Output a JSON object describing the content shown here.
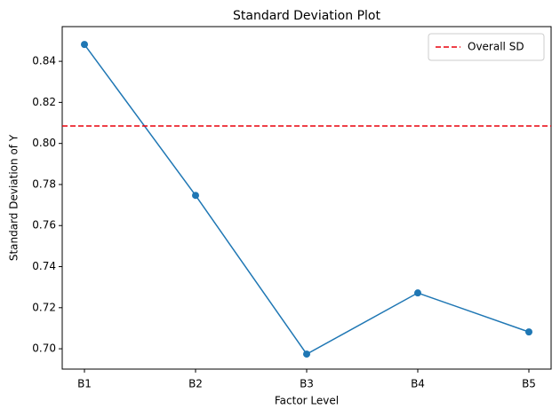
{
  "chart_data": {
    "type": "line",
    "title": "Standard Deviation Plot",
    "xlabel": "Factor Level",
    "ylabel": "Standard Deviation of Y",
    "categories": [
      "B1",
      "B2",
      "B3",
      "B4",
      "B5"
    ],
    "series": [
      {
        "color": "#1f77b4",
        "values": [
          0.8482,
          0.7747,
          0.6974,
          0.7272,
          0.7082
        ]
      }
    ],
    "reference_lines": [
      {
        "name": "Overall SD",
        "value": 0.8085,
        "color": "#e8000b",
        "style": "dashed"
      }
    ],
    "ylim": [
      0.6901,
      0.8569
    ],
    "yticks": [
      {
        "value": 0.7,
        "label": "0.70"
      },
      0.72,
      0.74,
      0.76,
      0.78,
      {
        "value": 0.8,
        "label": "0.80"
      },
      0.82,
      0.84
    ],
    "legend": "upper right",
    "grid": false
  }
}
